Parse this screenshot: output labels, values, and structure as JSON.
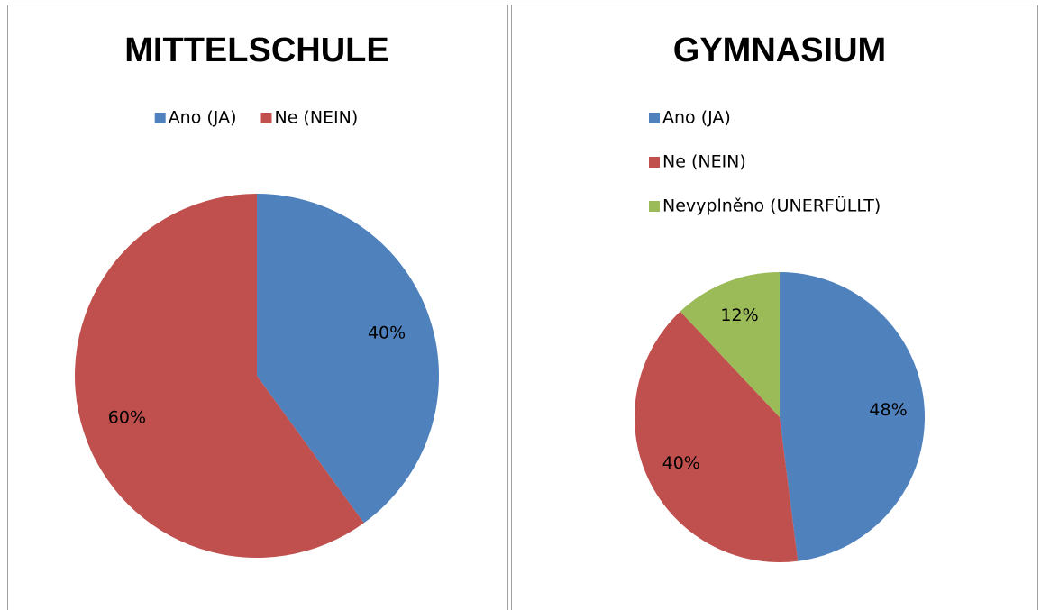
{
  "chart_data": [
    {
      "type": "pie",
      "title": "MITTELSCHULE",
      "categories": [
        "Ano (JA)",
        "Ne (NEIN)"
      ],
      "values": [
        40,
        60
      ],
      "value_labels": [
        "40%",
        "60%"
      ],
      "colors": [
        "#4f81bd",
        "#c0504d"
      ],
      "legend": "top"
    },
    {
      "type": "pie",
      "title": "GYMNASIUM",
      "categories": [
        "Ano (JA)",
        "Ne (NEIN)",
        "Nevyplněno (UNERFÜLLT)"
      ],
      "values": [
        48,
        40,
        12
      ],
      "value_labels": [
        "48%",
        "40%",
        "12%"
      ],
      "colors": [
        "#4f81bd",
        "#c0504d",
        "#9bbb59"
      ],
      "legend": "top-left"
    }
  ]
}
